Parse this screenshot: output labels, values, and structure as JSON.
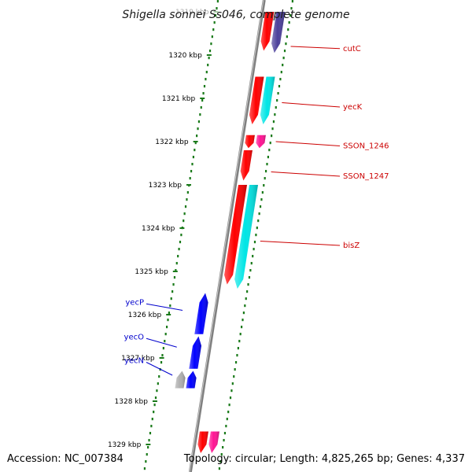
{
  "title": "Shigella sonnei Ss046, complete genome",
  "footer": {
    "accession": "Accession: NC_007384",
    "topology": "Topology: circular; Length: 4,825,265 bp; Genes: 4,337"
  },
  "colors": {
    "backbone": "#808080",
    "ticks": "#1a7a1a",
    "forward_cds": "#ff0000",
    "forward_alt": "#ff1493",
    "forward_feature": "#00e5e5",
    "forward_other": "#4b3f9a",
    "reverse_cds": "#0000ff",
    "pseudo": "#b0b0b0",
    "label_forward": "#cc0000",
    "label_reverse": "#0000cc"
  },
  "ticks": [
    {
      "kbp": 1319,
      "label": "1319 kbp",
      "faded": true
    },
    {
      "kbp": 1320,
      "label": "1320 kbp"
    },
    {
      "kbp": 1321,
      "label": "1321 kbp"
    },
    {
      "kbp": 1322,
      "label": "1322 kbp"
    },
    {
      "kbp": 1323,
      "label": "1323 kbp"
    },
    {
      "kbp": 1324,
      "label": "1324 kbp"
    },
    {
      "kbp": 1325,
      "label": "1325 kbp"
    },
    {
      "kbp": 1326,
      "label": "1326 kbp"
    },
    {
      "kbp": 1327,
      "label": "1327 kbp"
    },
    {
      "kbp": 1328,
      "label": "1328 kbp"
    },
    {
      "kbp": 1329,
      "label": "1329 kbp"
    }
  ],
  "features": [
    {
      "strand": "+",
      "track": 1,
      "start": 1319.0,
      "end": 1319.9,
      "color": "#ff0000",
      "label": ""
    },
    {
      "strand": "+",
      "track": 2,
      "start": 1319.0,
      "end": 1319.95,
      "color": "#4b3f9a",
      "label": ""
    },
    {
      "strand": "+",
      "track": 1,
      "start": 1320.5,
      "end": 1321.6,
      "color": "#ff0000",
      "label": ""
    },
    {
      "strand": "+",
      "track": 2,
      "start": 1320.5,
      "end": 1321.6,
      "color": "#00e5e5",
      "label": ""
    },
    {
      "strand": "+",
      "track": 1,
      "start": 1321.85,
      "end": 1322.15,
      "color": "#ff0000",
      "label": ""
    },
    {
      "strand": "+",
      "track": 2,
      "start": 1321.85,
      "end": 1322.15,
      "color": "#ff1493",
      "label": ""
    },
    {
      "strand": "+",
      "track": 1,
      "start": 1322.2,
      "end": 1322.9,
      "color": "#ff0000",
      "label": ""
    },
    {
      "strand": "+",
      "track": 1,
      "start": 1323.0,
      "end": 1325.3,
      "color": "#ff0000",
      "label": ""
    },
    {
      "strand": "+",
      "track": 2,
      "start": 1323.0,
      "end": 1325.4,
      "color": "#00e5e5",
      "label": ""
    },
    {
      "strand": "-",
      "track": 1,
      "start": 1325.5,
      "end": 1326.45,
      "color": "#0000ff",
      "label": ""
    },
    {
      "strand": "-",
      "track": 1,
      "start": 1326.5,
      "end": 1327.25,
      "color": "#0000ff",
      "label": ""
    },
    {
      "strand": "-",
      "track": 1,
      "start": 1327.3,
      "end": 1327.7,
      "color": "#0000ff",
      "label": ""
    },
    {
      "strand": "-",
      "track": 2,
      "start": 1327.3,
      "end": 1327.7,
      "color": "#b0b0b0",
      "label": ""
    },
    {
      "strand": "+",
      "track": 1,
      "start": 1328.7,
      "end": 1329.2,
      "color": "#ff0000",
      "label": ""
    },
    {
      "strand": "+",
      "track": 2,
      "start": 1328.7,
      "end": 1329.2,
      "color": "#ff1493",
      "label": ""
    }
  ],
  "gene_labels": [
    {
      "text": "cutC",
      "side": "right",
      "kbp": 1319.85,
      "anchor_kbp": 1319.8
    },
    {
      "text": "yecK",
      "side": "right",
      "kbp": 1321.2,
      "anchor_kbp": 1321.1
    },
    {
      "text": "SSON_1246",
      "side": "right",
      "kbp": 1322.1,
      "anchor_kbp": 1322.0
    },
    {
      "text": "SSON_1247",
      "side": "right",
      "kbp": 1322.8,
      "anchor_kbp": 1322.7
    },
    {
      "text": "bisZ",
      "side": "right",
      "kbp": 1324.4,
      "anchor_kbp": 1324.3
    },
    {
      "text": "yecP",
      "side": "left",
      "kbp": 1325.75,
      "anchor_kbp": 1325.9
    },
    {
      "text": "yecO",
      "side": "left",
      "kbp": 1326.55,
      "anchor_kbp": 1326.75
    },
    {
      "text": "yecN",
      "side": "left",
      "kbp": 1327.1,
      "anchor_kbp": 1327.4
    }
  ]
}
